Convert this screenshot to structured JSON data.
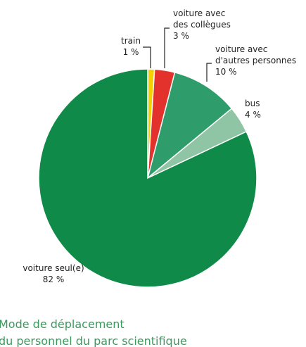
{
  "chart_data": {
    "type": "pie",
    "title": [
      "Mode de déplacement",
      "du personnel du parc scientifique"
    ],
    "categories": [
      [
        "train"
      ],
      [
        "voiture avec",
        "des collègues"
      ],
      [
        "voiture avec",
        "d'autres personnes"
      ],
      [
        "bus"
      ],
      [
        "voiture seul(e)"
      ]
    ],
    "values": [
      1,
      3,
      10,
      4,
      82
    ],
    "value_labels": [
      "1 %",
      "3 %",
      "10 %",
      "4 %",
      "82 %"
    ],
    "colors": [
      "#f5d000",
      "#e3322b",
      "#2f9d6b",
      "#8fc4a4",
      "#108a48"
    ]
  }
}
